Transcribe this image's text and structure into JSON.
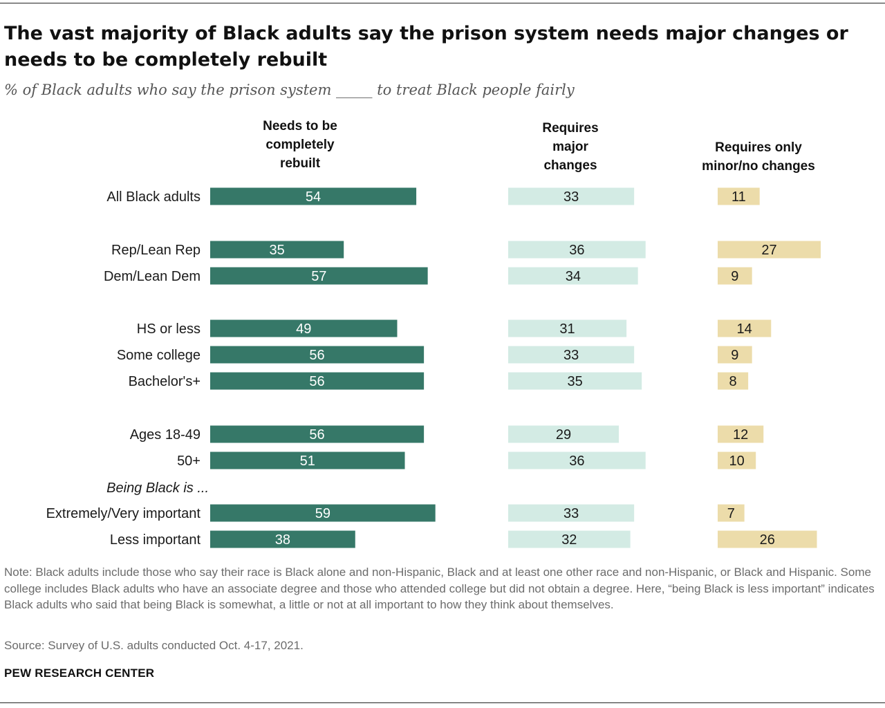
{
  "title": "The vast majority of Black adults say the prison system needs major changes or needs to be completely rebuilt",
  "subtitle": "% of Black adults who say the prison system _____ to treat Black people fairly",
  "note": "Note: Black adults include those who say their race is Black alone and non-Hispanic, Black and at least one other race and non-Hispanic, or Black and Hispanic. Some college includes Black adults who have an associate degree and those who attended college but did not obtain a degree. Here, “being Black is less important” indicates Black adults who said that being Black is somewhat, a little or not at all important to how they think about themselves.",
  "source": "Source: Survey of U.S. adults conducted Oct. 4-17, 2021.",
  "brand": "PEW RESEARCH CENTER",
  "chart_data": {
    "type": "bar",
    "orientation": "horizontal",
    "layout": "side-by-side columns",
    "categories": [
      "All Black adults",
      "Rep/Lean Rep",
      "Dem/Lean Dem",
      "HS or less",
      "Some college",
      "Bachelor's+",
      "Ages 18-49",
      "50+",
      "Extremely/Very important",
      "Less important"
    ],
    "group_label": "Being Black is ...",
    "series": [
      {
        "name": "Needs to be completely rebuilt",
        "color": "#367868",
        "label_color": "#ffffff",
        "values": [
          54,
          35,
          57,
          49,
          56,
          56,
          56,
          51,
          59,
          38
        ]
      },
      {
        "name": "Requires major changes",
        "color": "#d3ebe4",
        "label_color": "#1a1a1a",
        "values": [
          33,
          36,
          34,
          31,
          33,
          35,
          29,
          36,
          33,
          32
        ]
      },
      {
        "name": "Requires only minor/no changes",
        "color": "#ecdcaa",
        "label_color": "#1a1a1a",
        "values": [
          11,
          27,
          9,
          14,
          9,
          8,
          12,
          10,
          7,
          26
        ]
      }
    ],
    "column_headers": [
      [
        "Needs to be",
        "completely",
        "rebuilt"
      ],
      [
        "Requires",
        "major",
        "changes"
      ],
      [
        "Requires only",
        "minor/no changes"
      ]
    ],
    "grid": false,
    "legend": "none"
  }
}
